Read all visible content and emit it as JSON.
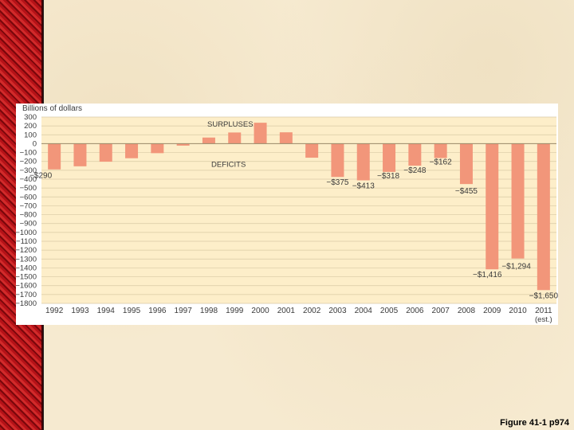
{
  "chart_data": {
    "type": "bar",
    "ylabel": "Billions of dollars",
    "ylim": [
      -1800,
      300
    ],
    "yticks": [
      300,
      200,
      100,
      0,
      -100,
      -200,
      -300,
      -400,
      -500,
      -600,
      -700,
      -800,
      -900,
      -1000,
      -1100,
      -1200,
      -1300,
      -1400,
      -1500,
      -1600,
      -1700,
      -1800
    ],
    "ytick_labels": [
      "300",
      "200",
      "100",
      "0",
      "−100",
      "−200",
      "−300",
      "−400",
      "−500",
      "−600",
      "−700",
      "−800",
      "−900",
      "−1000",
      "−1100",
      "−1200",
      "−1300",
      "−1400",
      "−1500",
      "−1600",
      "−1700",
      "−1800"
    ],
    "categories": [
      "1992",
      "1993",
      "1994",
      "1995",
      "1996",
      "1997",
      "1998",
      "1999",
      "2000",
      "2001",
      "2002",
      "2003",
      "2004",
      "2005",
      "2006",
      "2007",
      "2008",
      "2009",
      "2010",
      "2011"
    ],
    "category_sublabels": [
      "",
      "",
      "",
      "",
      "",
      "",
      "",
      "",
      "",
      "",
      "",
      "",
      "",
      "",
      "",
      "",
      "",
      "",
      "",
      "(est.)"
    ],
    "values": [
      -290,
      -255,
      -203,
      -164,
      -107,
      -22,
      69,
      126,
      236,
      128,
      -158,
      -375,
      -413,
      -318,
      -248,
      -162,
      -455,
      -1416,
      -1294,
      -1650
    ],
    "data_labels": [
      "−$290",
      "",
      "",
      "",
      "",
      "",
      "",
      "",
      "",
      "",
      "",
      "−$375",
      "−$413",
      "−$318",
      "−$248",
      "−$162",
      "−$455",
      "−$1,416",
      "−$1,294",
      "−$1,650"
    ],
    "annotations": [
      "SURPLUSES",
      "DEFICITS"
    ],
    "grid": true,
    "colors": {
      "bar": "#f2967a",
      "plot_bg": "#fdeec9",
      "grid": "#d9c9a4",
      "text": "#3a3a3a"
    }
  },
  "caption": "Figure 41-1 p974"
}
